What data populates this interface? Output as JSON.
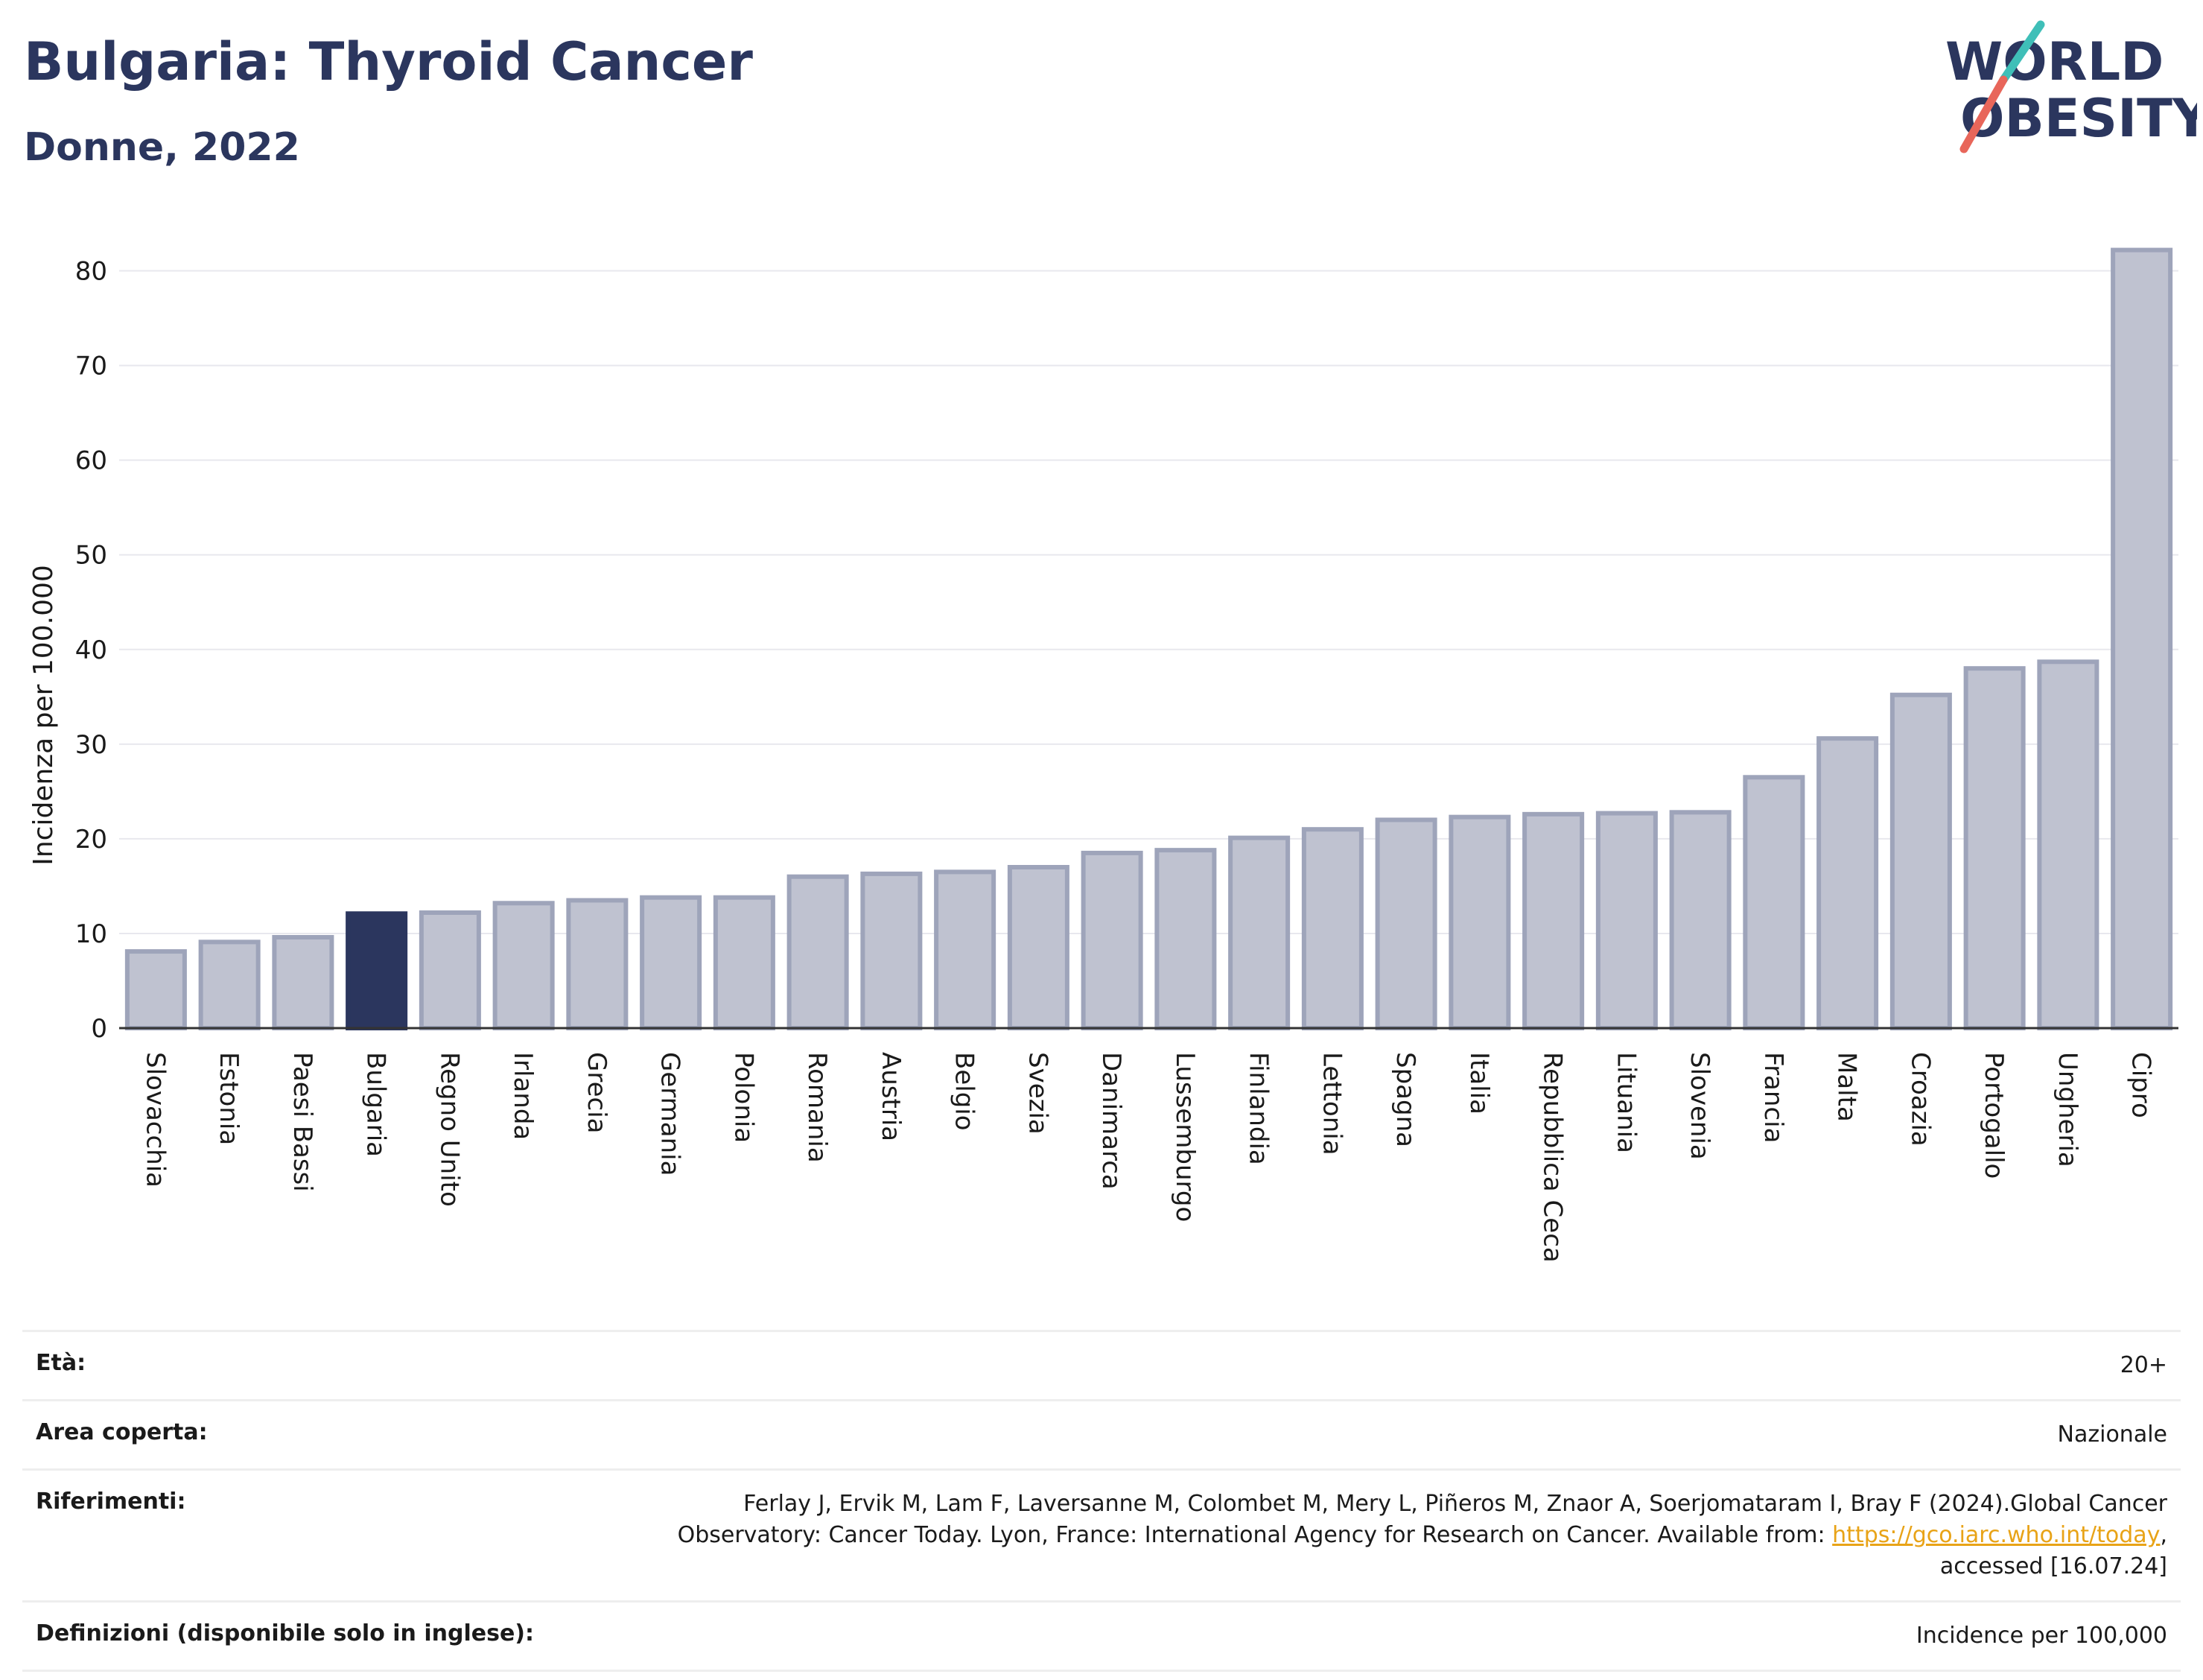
{
  "header": {
    "title": "Bulgaria: Thyroid Cancer",
    "subtitle": "Donne, 2022"
  },
  "logo": {
    "line1": "WORLD",
    "line2": "OBESITY"
  },
  "chart_data": {
    "type": "bar",
    "ylabel": "Incidenza per 100.000",
    "ylim": [
      0,
      85
    ],
    "yticks": [
      0,
      10,
      20,
      30,
      40,
      50,
      60,
      70,
      80
    ],
    "grid": true,
    "highlight": "Bulgaria",
    "colors": {
      "bar": "#bfc2d0",
      "bar_edge": "#9ea4ba",
      "highlight": "#2b365e",
      "grid": "#e8e8ee"
    },
    "categories": [
      "Slovacchia",
      "Estonia",
      "Paesi Bassi",
      "Bulgaria",
      "Regno Unito",
      "Irlanda",
      "Grecia",
      "Germania",
      "Polonia",
      "Romania",
      "Austria",
      "Belgio",
      "Svezia",
      "Danimarca",
      "Lussemburgo",
      "Finlandia",
      "Lettonia",
      "Spagna",
      "Italia",
      "Repubblica Ceca",
      "Lituania",
      "Slovenia",
      "Francia",
      "Malta",
      "Croazia",
      "Portogallo",
      "Ungheria",
      "Cipro"
    ],
    "values": [
      8.1,
      9.1,
      9.6,
      12.1,
      12.2,
      13.2,
      13.5,
      13.8,
      13.8,
      16.0,
      16.3,
      16.5,
      17.0,
      18.5,
      18.8,
      20.1,
      21.0,
      22.0,
      22.3,
      22.6,
      22.7,
      22.8,
      26.5,
      30.6,
      35.2,
      38.0,
      38.7,
      82.2
    ]
  },
  "meta": {
    "age_label": "Età:",
    "age_value": "20+",
    "area_label": "Area coperta:",
    "area_value": "Nazionale",
    "ref_label": "Riferimenti:",
    "ref_text1": "Ferlay J, Ervik M, Lam F, Laversanne M, Colombet M, Mery L, Piñeros M, Znaor A, Soerjomataram I, Bray F (2024).Global Cancer",
    "ref_text2": "Observatory: Cancer Today. Lyon, France: International Agency for Research on Cancer. Available from: ",
    "ref_link": "https://gco.iarc.who.int/today",
    "ref_text3": ",",
    "ref_text4": "accessed [16.07.24]",
    "def_label": "Definizioni (disponibile solo in inglese):",
    "def_value": "Incidence per 100,000"
  }
}
